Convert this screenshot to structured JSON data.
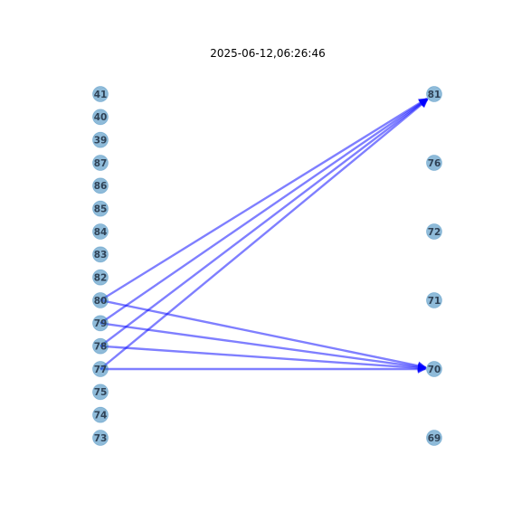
{
  "title": "2025-06-12,06:26:46",
  "colors": {
    "node_fill": "#1f77b4",
    "node_fill_opacity": 0.5,
    "label_color": "#2f4256",
    "edge_color": "#0000ff",
    "edge_opacity": 0.5
  },
  "left_nodes": [
    "41",
    "40",
    "39",
    "87",
    "86",
    "85",
    "84",
    "83",
    "82",
    "80",
    "79",
    "78",
    "77",
    "75",
    "74",
    "73"
  ],
  "right_nodes": [
    "81",
    "76",
    "72",
    "71",
    "70",
    "69"
  ],
  "edges": [
    {
      "from": "80",
      "to": "81"
    },
    {
      "from": "79",
      "to": "81"
    },
    {
      "from": "78",
      "to": "81"
    },
    {
      "from": "77",
      "to": "81"
    },
    {
      "from": "80",
      "to": "70"
    },
    {
      "from": "79",
      "to": "70"
    },
    {
      "from": "78",
      "to": "70"
    },
    {
      "from": "77",
      "to": "70"
    }
  ]
}
